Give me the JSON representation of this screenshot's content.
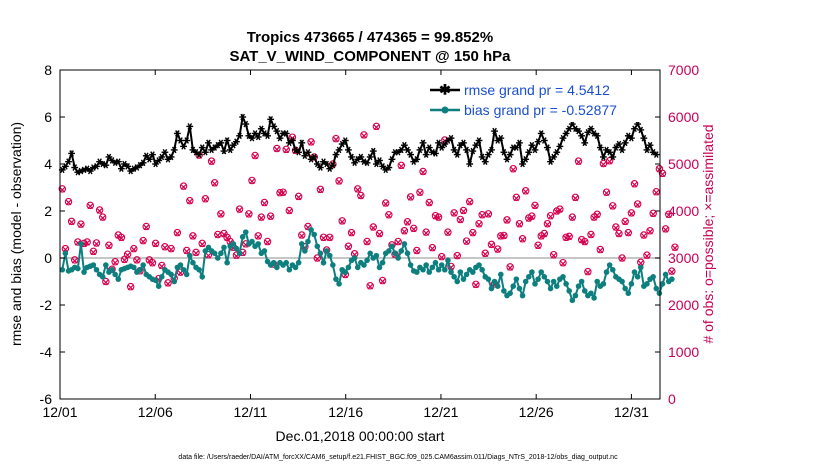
{
  "chart_data": {
    "type": "line",
    "title": "Tropics 473665 / 474365 = 99.852%",
    "subtitle": "SAT_V_WIND_COMPONENT @ 150 hPa",
    "xlabel": "Dec.01,2018 00:00:00 start",
    "ylabel": "rmse and bias (model - observation)",
    "ylabel_right": "# of obs: o=possible; ×=assimilated",
    "footer": "data file: /Users/raeder/DAI/ATM_forcXX/CAM6_setup/f.e21.FHIST_BGC.f09_025.CAM6assim.011/Diags_NTrS_2018-12/obs_diag_output.nc",
    "ylim": [
      -6,
      8
    ],
    "ylim_right": [
      0,
      7000
    ],
    "xlim": [
      0,
      31.5
    ],
    "x_ticks": [
      0,
      5,
      10,
      15,
      20,
      25,
      30
    ],
    "x_tick_labels": [
      "12/01",
      "12/06",
      "12/11",
      "12/16",
      "12/21",
      "12/26",
      "12/31"
    ],
    "y_ticks": [
      -6,
      -4,
      -2,
      0,
      2,
      4,
      6,
      8
    ],
    "y_tick_labels": [
      "-6",
      "-4",
      "-2",
      "0",
      "2",
      "4",
      "6",
      "8"
    ],
    "y_ticks_right": [
      0,
      1000,
      2000,
      3000,
      4000,
      5000,
      6000,
      7000
    ],
    "y_tick_labels_right": [
      "0",
      "1000",
      "2000",
      "3000",
      "4000",
      "5000",
      "6000",
      "7000"
    ],
    "zero_line": 0,
    "colors": {
      "rmse": "#000000",
      "bias": "#0e7f7f",
      "obs": "#d6004f",
      "zero": "#b3b3b3",
      "right_axis": "#c8005a",
      "legend_text": "#1a4fd0"
    },
    "series": [
      {
        "name": "rmse grand pr = 4.5412",
        "color": "#000000",
        "marker": "star",
        "values": [
          3.75,
          3.9,
          4.1,
          4.45,
          3.85,
          3.65,
          3.7,
          3.75,
          3.8,
          3.7,
          3.85,
          3.9,
          4.1,
          4.0,
          3.95,
          4.3,
          4.15,
          4.05,
          4.1,
          3.8,
          4.0,
          3.9,
          3.7,
          3.8,
          3.85,
          3.95,
          4.05,
          4.35,
          4.2,
          4.4,
          4.0,
          4.15,
          4.3,
          4.5,
          4.2,
          4.3,
          4.6,
          5.3,
          5.0,
          4.75,
          5.0,
          5.6,
          4.6,
          4.5,
          4.4,
          4.7,
          4.5,
          4.9,
          4.6,
          4.7,
          4.8,
          4.9,
          4.55,
          5.0,
          4.6,
          4.8,
          4.95,
          5.2,
          6.0,
          5.7,
          5.2,
          5.1,
          5.3,
          5.15,
          5.5,
          5.3,
          5.2,
          5.9,
          5.6,
          5.4,
          5.1,
          5.3,
          5.3,
          4.9,
          5.0,
          4.6,
          4.5,
          4.9,
          4.35,
          4.5,
          4.2,
          4.3,
          4.0,
          3.85,
          4.1,
          4.0,
          3.8,
          3.95,
          4.4,
          4.6,
          4.85,
          5.0,
          4.6,
          4.3,
          4.05,
          4.2,
          4.3,
          4.1,
          4.05,
          4.3,
          4.55,
          4.0,
          4.15,
          3.9,
          3.75,
          3.85,
          4.2,
          4.5,
          4.5,
          4.6,
          4.8,
          4.6,
          4.4,
          4.1,
          4.2,
          4.6,
          4.9,
          4.4,
          4.7,
          4.5,
          4.45,
          4.9,
          4.7,
          4.85,
          5.0,
          5.1,
          4.6,
          4.4,
          4.8,
          4.9,
          4.6,
          4.0,
          4.55,
          4.8,
          5.0,
          4.3,
          4.1,
          4.4,
          4.6,
          5.4,
          5.0,
          5.1,
          4.5,
          4.2,
          4.4,
          4.7,
          4.7,
          4.9,
          4.0,
          4.2,
          4.5,
          4.8,
          4.6,
          4.95,
          5.3,
          5.0,
          4.7,
          4.1,
          4.3,
          4.5,
          4.75,
          5.1,
          5.3,
          5.5,
          5.7,
          5.5,
          5.4,
          5.2,
          4.9,
          5.35,
          5.5,
          5.3,
          5.2,
          4.7,
          4.3,
          4.6,
          4.5,
          4.3,
          4.7,
          4.85,
          4.6,
          4.9,
          5.2,
          5.1,
          5.5,
          5.7,
          5.45,
          5.1,
          4.6,
          4.8,
          4.5,
          4.4
        ]
      },
      {
        "name": "bias grand pr = -0.52877",
        "color": "#0e7f7f",
        "marker": "dot",
        "values": [
          -0.5,
          0.2,
          -0.55,
          -0.5,
          -0.4,
          -0.45,
          0.6,
          -0.6,
          -0.4,
          -0.35,
          -0.3,
          -0.5,
          -0.7,
          -0.8,
          -0.3,
          -0.6,
          -0.5,
          -0.7,
          -0.9,
          -0.5,
          -0.45,
          -0.4,
          -0.35,
          -0.4,
          -0.6,
          -0.5,
          -0.3,
          -0.7,
          -0.8,
          -0.9,
          -0.95,
          -1.2,
          -0.8,
          -0.5,
          -0.6,
          -0.7,
          -1.0,
          -0.4,
          -0.3,
          -0.5,
          -0.7,
          0.1,
          -0.2,
          -0.4,
          -0.5,
          -0.8,
          0.3,
          0.45,
          0.3,
          0.2,
          0.0,
          0.2,
          0.45,
          -0.2,
          0.5,
          0.6,
          0.4,
          0.2,
          0.9,
          1.1,
          0.6,
          0.7,
          0.5,
          0.6,
          0.2,
          0.3,
          -0.15,
          -0.3,
          -0.2,
          -0.4,
          -0.2,
          -0.3,
          -0.2,
          -0.5,
          -0.3,
          -0.4,
          -0.2,
          0.6,
          0.3,
          0.7,
          1.2,
          1.0,
          0.5,
          0.2,
          -0.2,
          0.3,
          0.1,
          -0.3,
          -0.9,
          -1.1,
          -0.5,
          -0.6,
          -0.4,
          -0.1,
          0.0,
          -0.4,
          -0.2,
          -0.3,
          -0.1,
          0.2,
          0.0,
          0.1,
          -0.4,
          -0.2,
          0.2,
          0.3,
          0.5,
          0.2,
          0.0,
          0.3,
          0.6,
          0.2,
          -0.3,
          -0.55,
          -0.6,
          -0.4,
          -0.5,
          -0.3,
          -0.6,
          -0.4,
          -0.2,
          -0.5,
          -0.3,
          -0.5,
          -0.1,
          -0.6,
          -0.8,
          -1.0,
          -0.6,
          -0.9,
          -0.7,
          -0.5,
          -0.6,
          -0.4,
          -0.3,
          -0.5,
          -0.8,
          -0.9,
          -1.3,
          -1.0,
          -1.2,
          -0.7,
          -1.4,
          -1.6,
          -1.5,
          -1.2,
          -0.9,
          -1.3,
          -1.6,
          -1.0,
          -0.8,
          -0.6,
          -1.1,
          -0.9,
          -0.6,
          -0.8,
          -1.0,
          -1.3,
          -1.0,
          -1.2,
          -0.9,
          -0.8,
          -1.1,
          -1.4,
          -1.8,
          -1.6,
          -1.2,
          -1.0,
          -1.4,
          -1.6,
          -1.5,
          -1.7,
          -1.0,
          -1.2,
          -1.1,
          -0.6,
          -0.3,
          -0.5,
          -0.8,
          -0.9,
          -1.0,
          -1.3,
          -1.5,
          -1.1,
          -0.6,
          -0.8,
          -0.4,
          -1.2,
          -1.1,
          -0.9,
          -0.8,
          -1.3,
          -1.5,
          -1.1,
          -0.7,
          -1.0,
          -0.9
        ]
      },
      {
        "name": "# of obs assimilated",
        "color": "#d6004f",
        "marker": "x-circle",
        "axis": "right",
        "values": [
          4450,
          3180,
          4180,
          3760,
          2940,
          3320,
          3700,
          3290,
          3320,
          4100,
          3120,
          3300,
          4000,
          3850,
          2480,
          3250,
          2740,
          2900,
          3470,
          3420,
          2950,
          3060,
          2370,
          3180,
          2940,
          2710,
          3350,
          3650,
          2940,
          2880,
          3290,
          2540,
          2820,
          3220,
          2450,
          3180,
          2550,
          3520,
          2680,
          4510,
          3140,
          4200,
          3450,
          3100,
          5170,
          3290,
          4240,
          3050,
          5040,
          4580,
          3480,
          3920,
          3500,
          3420,
          3330,
          3210,
          3040,
          4020,
          3100,
          3280,
          3920,
          4630,
          5160,
          3450,
          3850,
          4160,
          3330,
          3870,
          2850,
          5310,
          4370,
          4380,
          5290,
          3990,
          5550,
          5270,
          4290,
          3470,
          3220,
          3650,
          5450,
          5130,
          2980,
          4440,
          3420,
          3150,
          3420,
          4980,
          5520,
          4620,
          3770,
          2630,
          3230,
          3520,
          3070,
          4450,
          4310,
          5600,
          3330,
          2390,
          3640,
          5780,
          3500,
          2500,
          4150,
          3900,
          3260,
          3060,
          3330,
          4950,
          3560,
          3750,
          4280,
          3610,
          3140,
          4380,
          4820,
          3530,
          4160,
          3200,
          3880,
          3850,
          3010,
          5490,
          3530,
          2800,
          3940,
          3030,
          3800,
          3990,
          3340,
          4180,
          3520,
          2420,
          3710,
          3900,
          3080,
          3920,
          3270,
          2430,
          3170,
          3450,
          3460,
          3790,
          2790,
          4880,
          4270,
          3710,
          3390,
          4410,
          3830,
          3870,
          4100,
          3250,
          3450,
          3500,
          3710,
          3880,
          3050,
          3980,
          4020,
          2880,
          3420,
          3440,
          3850,
          4270,
          5040,
          3370,
          3330,
          2690,
          3480,
          3850,
          3910,
          3160,
          4990,
          4380,
          5050,
          4090,
          3640,
          3500,
          2980,
          3760,
          3520,
          3940,
          4560,
          4130,
          2890,
          3470,
          3040,
          3560,
          3930,
          4390,
          4880,
          4780,
          3600,
          3910,
          2700,
          3210
        ]
      },
      {
        "name": "# of obs possible",
        "color": "#d6004f",
        "marker": "circle",
        "axis": "right",
        "values": [
          4470,
          3200,
          4200,
          3780,
          2960,
          3340,
          3720,
          3310,
          3340,
          4120,
          3140,
          3320,
          4020,
          3870,
          2500,
          3270,
          2760,
          2920,
          3490,
          3440,
          2970,
          3080,
          2390,
          3200,
          2960,
          2730,
          3370,
          3670,
          2960,
          2900,
          3310,
          2560,
          2840,
          3240,
          2470,
          3200,
          2570,
          3540,
          2700,
          4530,
          3160,
          4220,
          3470,
          3120,
          5190,
          3310,
          4260,
          3070,
          5060,
          4600,
          3500,
          3940,
          3520,
          3440,
          3350,
          3230,
          3060,
          4040,
          3120,
          3300,
          3940,
          4650,
          5180,
          3470,
          3870,
          4180,
          3350,
          3890,
          2870,
          5330,
          4390,
          4400,
          5310,
          4010,
          5570,
          5290,
          4310,
          3490,
          3240,
          3670,
          5470,
          5150,
          3000,
          4460,
          3440,
          3170,
          3440,
          5000,
          5540,
          4640,
          3790,
          2650,
          3250,
          3540,
          3090,
          4470,
          4330,
          5620,
          3350,
          2410,
          3660,
          5800,
          3520,
          2520,
          4170,
          3920,
          3280,
          3080,
          3350,
          4970,
          3580,
          3770,
          4300,
          3630,
          3160,
          4400,
          4840,
          3550,
          4180,
          3220,
          3900,
          3870,
          3030,
          5510,
          3550,
          2820,
          3960,
          3050,
          3820,
          4010,
          3360,
          4200,
          3540,
          2440,
          3730,
          3920,
          3100,
          3940,
          3290,
          2450,
          3190,
          3470,
          3480,
          3810,
          2810,
          4900,
          4290,
          3730,
          3410,
          4430,
          3850,
          3890,
          4120,
          3270,
          3470,
          3520,
          3730,
          3900,
          3070,
          4000,
          4040,
          2900,
          3440,
          3460,
          3870,
          4290,
          5060,
          3390,
          3350,
          2710,
          3500,
          3870,
          3930,
          3180,
          5010,
          4400,
          5070,
          4110,
          3660,
          3520,
          3000,
          3780,
          3540,
          3960,
          4580,
          4150,
          2910,
          3490,
          3060,
          3580,
          3950,
          4410,
          4900,
          4800,
          3620,
          3930,
          2720,
          3230
        ]
      }
    ],
    "legend_position": "top-right"
  }
}
